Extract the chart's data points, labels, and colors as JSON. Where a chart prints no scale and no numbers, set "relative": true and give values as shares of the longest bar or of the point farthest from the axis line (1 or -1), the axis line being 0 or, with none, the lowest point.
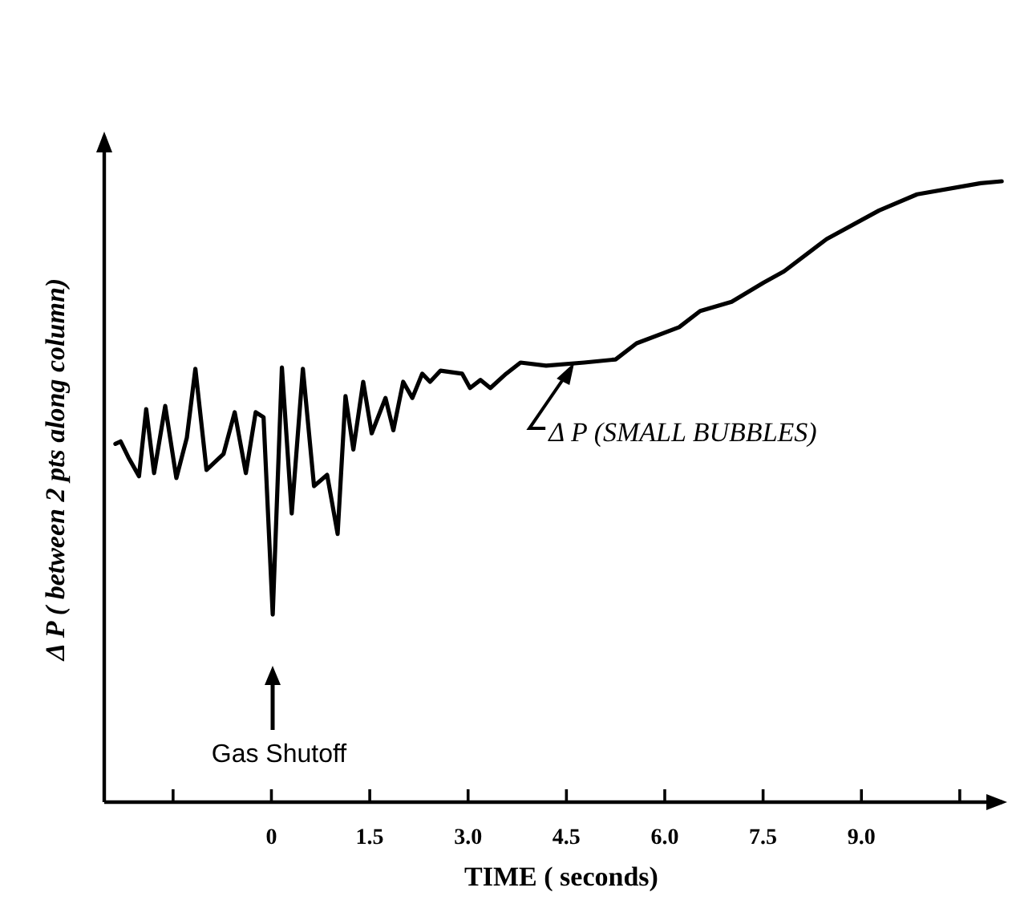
{
  "chart_data": {
    "type": "line",
    "relative": true,
    "xlabel": "TIME ( seconds)",
    "ylabel": "Δ P ( between  2 pts along column)",
    "xlim": [
      -2.55,
      11.15
    ],
    "xticks": [
      {
        "value": -1.5,
        "label": null
      },
      0,
      1.5,
      {
        "value": 3.0,
        "label": "3.0"
      },
      4.5,
      {
        "value": 6.0,
        "label": "6.0"
      },
      7.5,
      {
        "value": 9.0,
        "label": "9.0"
      },
      {
        "value": 10.5,
        "label": null
      }
    ],
    "grid": false,
    "marker": "none",
    "line_style": "solid",
    "series": [
      {
        "color": "#000000",
        "x": [
          -2.38,
          -2.3,
          -2.18,
          -2.02,
          -1.91,
          -1.79,
          -1.62,
          -1.45,
          -1.29,
          -1.16,
          -0.99,
          -0.73,
          -0.56,
          -0.39,
          -0.24,
          -0.12,
          0.02,
          0.16,
          0.31,
          0.48,
          0.65,
          0.85,
          1.01,
          1.13,
          1.25,
          1.4,
          1.53,
          1.74,
          1.86,
          2.01,
          2.15,
          2.3,
          2.42,
          2.58,
          2.91,
          3.03,
          3.19,
          3.34,
          3.58,
          3.8,
          4.19,
          4.77,
          5.25,
          5.57,
          6.22,
          6.54,
          7.02,
          7.51,
          7.82,
          8.47,
          9.27,
          9.85,
          10.82,
          11.14
        ],
        "values": [
          0.577,
          0.581,
          0.555,
          0.525,
          0.633,
          0.53,
          0.638,
          0.522,
          0.587,
          0.698,
          0.535,
          0.561,
          0.628,
          0.53,
          0.628,
          0.62,
          0.302,
          0.7,
          0.465,
          0.698,
          0.509,
          0.527,
          0.432,
          0.654,
          0.568,
          0.677,
          0.594,
          0.651,
          0.599,
          0.677,
          0.651,
          0.69,
          0.677,
          0.695,
          0.69,
          0.667,
          0.68,
          0.667,
          0.69,
          0.708,
          0.703,
          0.708,
          0.713,
          0.739,
          0.765,
          0.791,
          0.806,
          0.837,
          0.855,
          0.907,
          0.953,
          0.979,
          0.997,
          1.0
        ]
      }
    ],
    "annotations": [
      "Gas Shutoff",
      {
        "text": "Δ P (SMALL BUBBLES)",
        "x": 4.62,
        "y": 0.708
      }
    ]
  }
}
